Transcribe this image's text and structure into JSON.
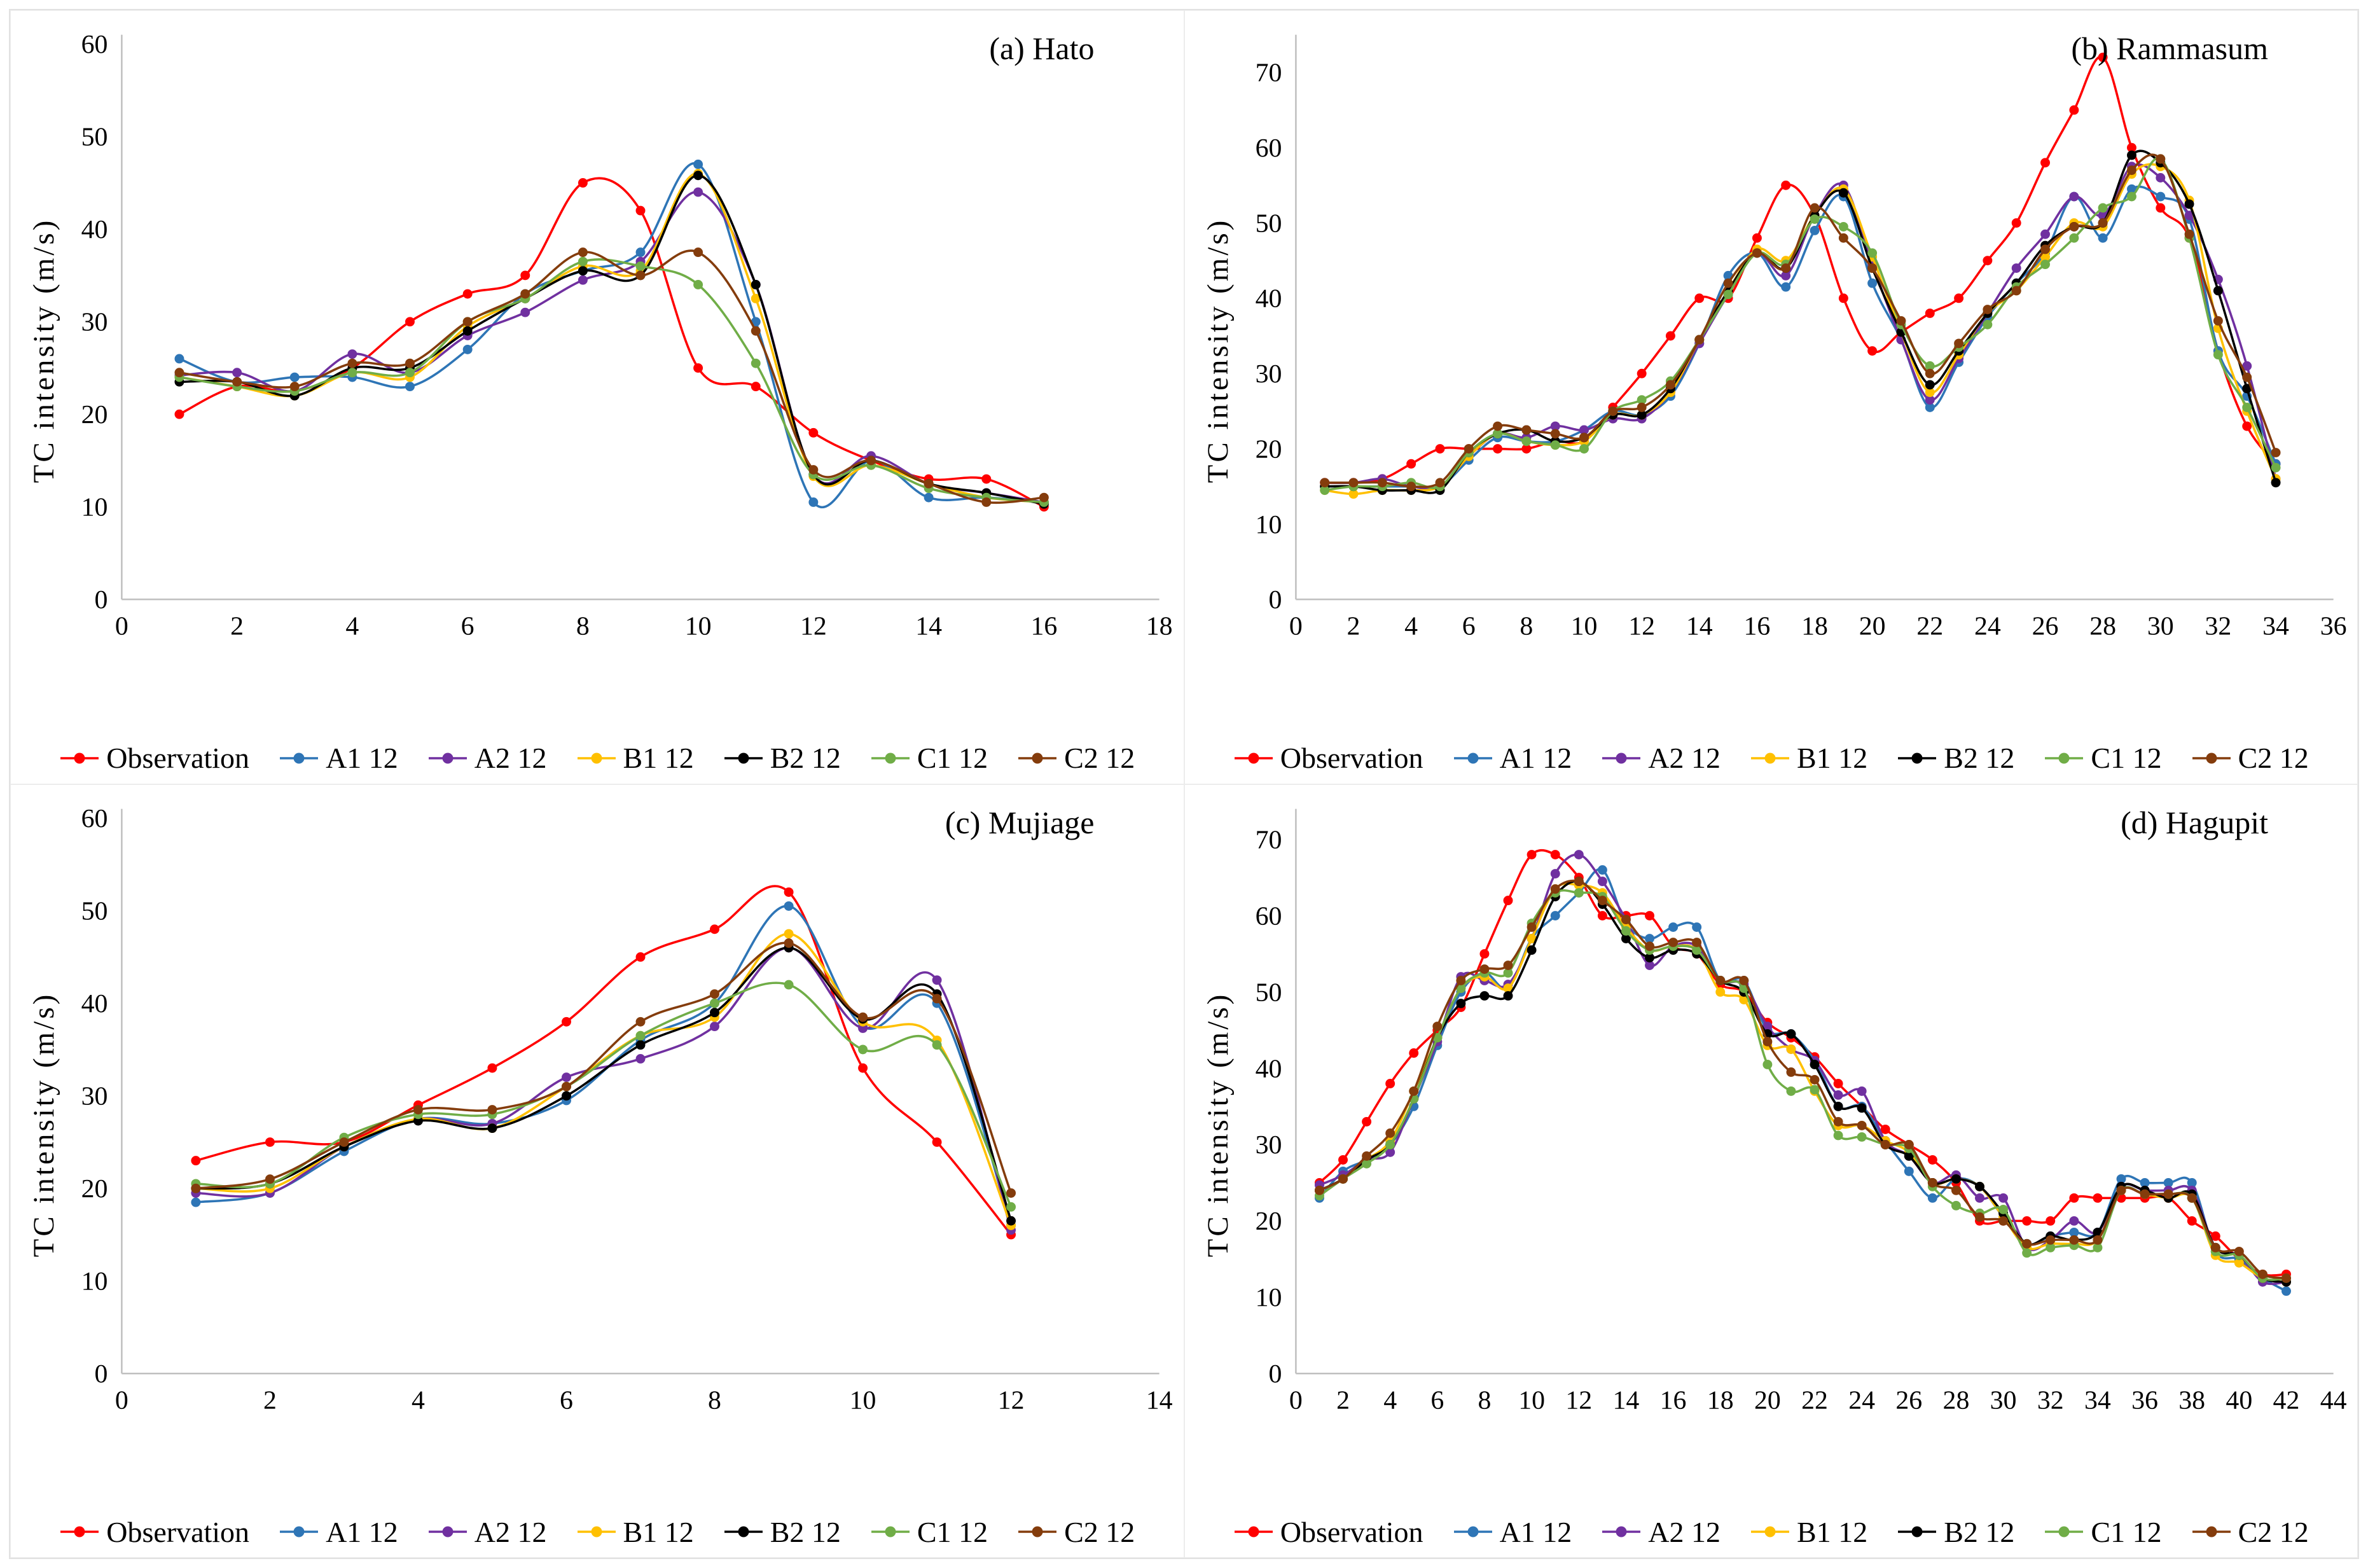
{
  "figure": {
    "background": "#FFFFFF",
    "border_color": "#E2E2E2",
    "axis_line_color": "#BFBFBF",
    "text_color": "#000000"
  },
  "chart_data": [
    {
      "type": "line",
      "title": "(a) Hato",
      "ylabel": "TC intensity (m/s)",
      "x_start": 1,
      "xmax": 18,
      "xtick_step": 2,
      "ymax_ticks": 60,
      "ytick_step": 10,
      "y_axis_top": 61,
      "grid": false,
      "legend_position": "bottom",
      "series": [
        {
          "name": "Observation",
          "color": "#FF0000",
          "values": [
            20,
            23,
            22.5,
            25,
            30,
            33,
            35,
            45,
            42,
            25,
            23,
            18,
            15,
            13,
            13,
            10
          ]
        },
        {
          "name": "A1 12",
          "color": "#2E75B6",
          "values": [
            26,
            23.5,
            24,
            24,
            23,
            27,
            33,
            35.5,
            37.5,
            47,
            30,
            10.5,
            15,
            11,
            11,
            10.5
          ]
        },
        {
          "name": "A2 12",
          "color": "#7030A0",
          "values": [
            24.2,
            24.5,
            22.5,
            26.5,
            24.5,
            28.5,
            31,
            34.5,
            36.5,
            44,
            34,
            13.5,
            15.5,
            12.5,
            11.5,
            10.5
          ]
        },
        {
          "name": "B1 12",
          "color": "#FFC000",
          "values": [
            24,
            23,
            22,
            24.5,
            24,
            29.5,
            32.5,
            36,
            35.5,
            46,
            32.5,
            13.3,
            14.5,
            12.5,
            11,
            10.5
          ]
        },
        {
          "name": "B2 12",
          "color": "#000000",
          "values": [
            23.5,
            23.5,
            22,
            25,
            25,
            29,
            32.5,
            35.5,
            35,
            45.8,
            34,
            13.5,
            15,
            12.5,
            11.5,
            10.3
          ]
        },
        {
          "name": "C1 12",
          "color": "#70AD47",
          "values": [
            24,
            23,
            22.5,
            24.5,
            24.5,
            30,
            32.5,
            36.5,
            36,
            34,
            25.5,
            13.5,
            14.5,
            12,
            11,
            10.5
          ]
        },
        {
          "name": "C2 12",
          "color": "#843C0C",
          "values": [
            24.5,
            23.5,
            23,
            25.5,
            25.5,
            30,
            33,
            37.5,
            35,
            37.5,
            29,
            14,
            15,
            12.5,
            10.5,
            11
          ]
        }
      ]
    },
    {
      "type": "line",
      "title": "(b) Rammasum",
      "ylabel": "TC intensity (m/s)",
      "x_start": 1,
      "xmax": 36,
      "xtick_step": 2,
      "ymax_ticks": 70,
      "ytick_step": 10,
      "y_axis_top": 75,
      "grid": false,
      "legend_position": "bottom",
      "series": [
        {
          "name": "Observation",
          "color": "#FF0000",
          "values": [
            15.5,
            15.5,
            16,
            18,
            20,
            20,
            20,
            20,
            21,
            21,
            25.5,
            30,
            35,
            40,
            40,
            48,
            55,
            51,
            40,
            33,
            35.5,
            38,
            40,
            45,
            50,
            58,
            65,
            72,
            60,
            52,
            48,
            33,
            23,
            18
          ]
        },
        {
          "name": "A1 12",
          "color": "#2E75B6",
          "values": [
            15,
            15,
            15,
            15,
            15,
            18.5,
            21.5,
            21,
            21,
            22.5,
            25,
            24.5,
            27,
            34,
            43,
            46,
            41.5,
            49,
            53.5,
            42,
            34.5,
            25.5,
            31.5,
            37.5,
            42,
            46,
            53.5,
            48,
            54.5,
            53.5,
            50.5,
            33,
            27,
            18
          ]
        },
        {
          "name": "A2 12",
          "color": "#7030A0",
          "values": [
            15.5,
            15.5,
            16,
            15,
            15,
            19,
            22,
            21.5,
            23,
            22.5,
            24,
            24,
            27.5,
            34,
            40.5,
            46,
            43,
            51,
            55,
            44.5,
            34.5,
            26.5,
            32,
            38,
            44,
            48.5,
            53.5,
            51,
            57.5,
            56,
            51,
            42.5,
            31,
            16
          ]
        },
        {
          "name": "B1 12",
          "color": "#FFC000",
          "values": [
            14.5,
            14,
            14.5,
            14.5,
            15,
            19,
            22,
            21,
            20.5,
            21,
            24.5,
            24.5,
            27.5,
            34.5,
            41,
            46.5,
            45,
            51,
            54.5,
            45.5,
            35.5,
            27.5,
            32.5,
            38,
            41,
            45.5,
            50,
            49.5,
            56.5,
            57.5,
            53,
            36,
            25,
            16
          ]
        },
        {
          "name": "B2 12",
          "color": "#000000",
          "values": [
            15,
            15,
            14.5,
            14.5,
            14.5,
            19.5,
            22,
            22.5,
            21,
            21.5,
            24.5,
            24.5,
            28,
            34.5,
            41,
            46,
            44,
            51,
            54,
            44,
            35.5,
            28.5,
            33,
            38,
            42,
            47,
            49.5,
            50,
            59,
            58,
            52.5,
            41,
            28,
            15.5
          ]
        },
        {
          "name": "C1 12",
          "color": "#70AD47",
          "values": [
            14.5,
            15,
            15,
            15.5,
            15,
            19.5,
            22,
            21,
            20.5,
            20,
            25,
            26.5,
            29,
            34.5,
            40.5,
            46,
            44.5,
            50.5,
            49.5,
            46,
            36.5,
            31,
            33.5,
            36.5,
            41.5,
            44.5,
            48,
            52,
            53.5,
            58.5,
            48,
            32.5,
            25.5,
            17.5
          ]
        },
        {
          "name": "C2 12",
          "color": "#843C0C",
          "values": [
            15.5,
            15.5,
            15.5,
            15,
            15.5,
            20,
            23,
            22.5,
            22,
            21.5,
            25,
            25.5,
            28.5,
            34.5,
            42,
            46,
            44,
            52,
            48,
            44,
            37,
            30,
            34,
            38.5,
            41,
            46.5,
            49.5,
            50,
            57,
            58.5,
            48.5,
            37,
            29.5,
            19.5
          ]
        }
      ]
    },
    {
      "type": "line",
      "title": "(c) Mujiage",
      "ylabel": "TC intensity (m/s)",
      "x_start": 1,
      "xmax": 14,
      "xtick_step": 2,
      "ymax_ticks": 60,
      "ytick_step": 10,
      "y_axis_top": 61,
      "grid": false,
      "legend_position": "bottom",
      "series": [
        {
          "name": "Observation",
          "color": "#FF0000",
          "values": [
            23,
            25,
            25,
            29,
            33,
            38,
            45,
            48,
            52,
            33,
            25,
            15
          ]
        },
        {
          "name": "A1 12",
          "color": "#2E75B6",
          "values": [
            18.5,
            19.5,
            24,
            27.5,
            27,
            29.5,
            36,
            40,
            50.5,
            37.5,
            40,
            16
          ]
        },
        {
          "name": "A2 12",
          "color": "#7030A0",
          "values": [
            19.5,
            19.5,
            24.5,
            27.5,
            27,
            32,
            34,
            37.5,
            46,
            37.3,
            42.5,
            15.5
          ]
        },
        {
          "name": "B1 12",
          "color": "#FFC000",
          "values": [
            20,
            20,
            24.5,
            27.5,
            26.5,
            31,
            36.5,
            38.5,
            47.5,
            38,
            36,
            16
          ]
        },
        {
          "name": "B2 12",
          "color": "#000000",
          "values": [
            20,
            20.5,
            24.5,
            27.3,
            26.5,
            30,
            35.5,
            39,
            46,
            38.3,
            41,
            16.5
          ]
        },
        {
          "name": "C1 12",
          "color": "#70AD47",
          "values": [
            20.5,
            20.5,
            25.5,
            28,
            28,
            31,
            36.5,
            40,
            42,
            35,
            35.5,
            18
          ]
        },
        {
          "name": "C2 12",
          "color": "#843C0C",
          "values": [
            20,
            21,
            25,
            28.5,
            28.5,
            31,
            38,
            41,
            46.5,
            38.5,
            40.5,
            19.5
          ]
        }
      ]
    },
    {
      "type": "line",
      "title": "(d) Hagupit",
      "ylabel": "TC intensity (m/s)",
      "x_start": 1,
      "xmax": 44,
      "xtick_step": 2,
      "ymax_ticks": 70,
      "ytick_step": 10,
      "y_axis_top": 74,
      "grid": false,
      "legend_position": "bottom",
      "series": [
        {
          "name": "Observation",
          "color": "#FF0000",
          "values": [
            25,
            28,
            33,
            38,
            42,
            45,
            48,
            55,
            62,
            68,
            68,
            65,
            60,
            60,
            60,
            56,
            55,
            51,
            50,
            46,
            44,
            41.5,
            38,
            35,
            32,
            30,
            28,
            25,
            20,
            20,
            20,
            20,
            23,
            23,
            23,
            23,
            23,
            20,
            18,
            15,
            13,
            13
          ]
        },
        {
          "name": "A1 12",
          "color": "#2E75B6",
          "values": [
            23,
            26.5,
            28,
            30,
            35,
            43,
            50,
            52.5,
            50.5,
            57,
            60,
            63,
            66,
            59,
            57,
            58.5,
            58.5,
            51.5,
            51.5,
            45,
            44.5,
            41,
            35,
            35,
            30.5,
            26.5,
            23,
            25.5,
            24.5,
            20.5,
            17,
            18,
            18.5,
            18.5,
            25.5,
            25,
            25,
            25,
            16,
            15,
            12.5,
            10.8
          ]
        },
        {
          "name": "A2 12",
          "color": "#7030A0",
          "values": [
            24.7,
            26,
            28,
            29,
            36,
            43.5,
            52,
            51.5,
            51,
            57,
            65.5,
            68,
            64.5,
            59.5,
            53.5,
            56,
            56,
            51.5,
            51,
            45.5,
            42.5,
            41,
            36.5,
            37,
            30.5,
            28.5,
            25,
            26,
            23,
            23,
            16.5,
            17.5,
            20,
            18.5,
            24.5,
            24,
            24,
            24,
            16.5,
            15.5,
            12,
            12
          ]
        },
        {
          "name": "B1 12",
          "color": "#FFC000",
          "values": [
            24,
            25.5,
            28,
            30.5,
            37,
            44,
            50.5,
            52,
            50.5,
            57,
            63.5,
            64,
            63,
            58.5,
            55.5,
            56,
            55.5,
            50,
            49,
            43,
            42.5,
            37,
            32.5,
            32.5,
            30.5,
            29,
            25,
            25.5,
            24.5,
            20.5,
            16.5,
            17,
            17,
            17.5,
            24,
            23.5,
            23,
            23,
            15.5,
            14.5,
            12.5,
            12
          ]
        },
        {
          "name": "B2 12",
          "color": "#000000",
          "values": [
            24,
            25.5,
            28,
            30,
            36,
            44,
            48.5,
            49.5,
            49.5,
            55.5,
            62.5,
            64.5,
            61.5,
            57,
            54.5,
            55.5,
            55,
            51.5,
            50,
            44.5,
            44.5,
            40.5,
            35,
            34.8,
            30,
            28.5,
            25,
            25.5,
            24.5,
            21,
            17,
            18,
            17.5,
            18.5,
            24.5,
            24,
            23,
            23.5,
            16.5,
            15.5,
            12.5,
            12
          ]
        },
        {
          "name": "C1 12",
          "color": "#70AD47",
          "values": [
            23.3,
            25.5,
            27.5,
            30,
            36,
            44,
            50.5,
            52.5,
            52.5,
            59,
            63,
            63,
            62.5,
            58,
            55.5,
            56,
            55.5,
            51.5,
            50.5,
            40.5,
            37,
            37.2,
            31.2,
            31,
            30,
            29.5,
            24.5,
            22,
            21,
            21.5,
            15.8,
            16.5,
            16.8,
            16.5,
            24,
            23.5,
            23.5,
            23,
            16,
            15.5,
            12.5,
            12.5
          ]
        },
        {
          "name": "C2 12",
          "color": "#843C0C",
          "values": [
            24,
            25.5,
            28.5,
            31.5,
            37,
            45.5,
            51.5,
            53,
            53.5,
            58.5,
            63.5,
            64.5,
            62,
            59.5,
            56,
            56.5,
            56.5,
            51.5,
            51.5,
            43.5,
            39.5,
            38.5,
            33,
            32.5,
            30,
            30,
            25,
            24,
            20.5,
            20,
            17,
            17.5,
            17.5,
            17.5,
            24,
            23.5,
            23.5,
            23,
            16.5,
            16,
            13,
            12.5
          ]
        }
      ]
    }
  ]
}
